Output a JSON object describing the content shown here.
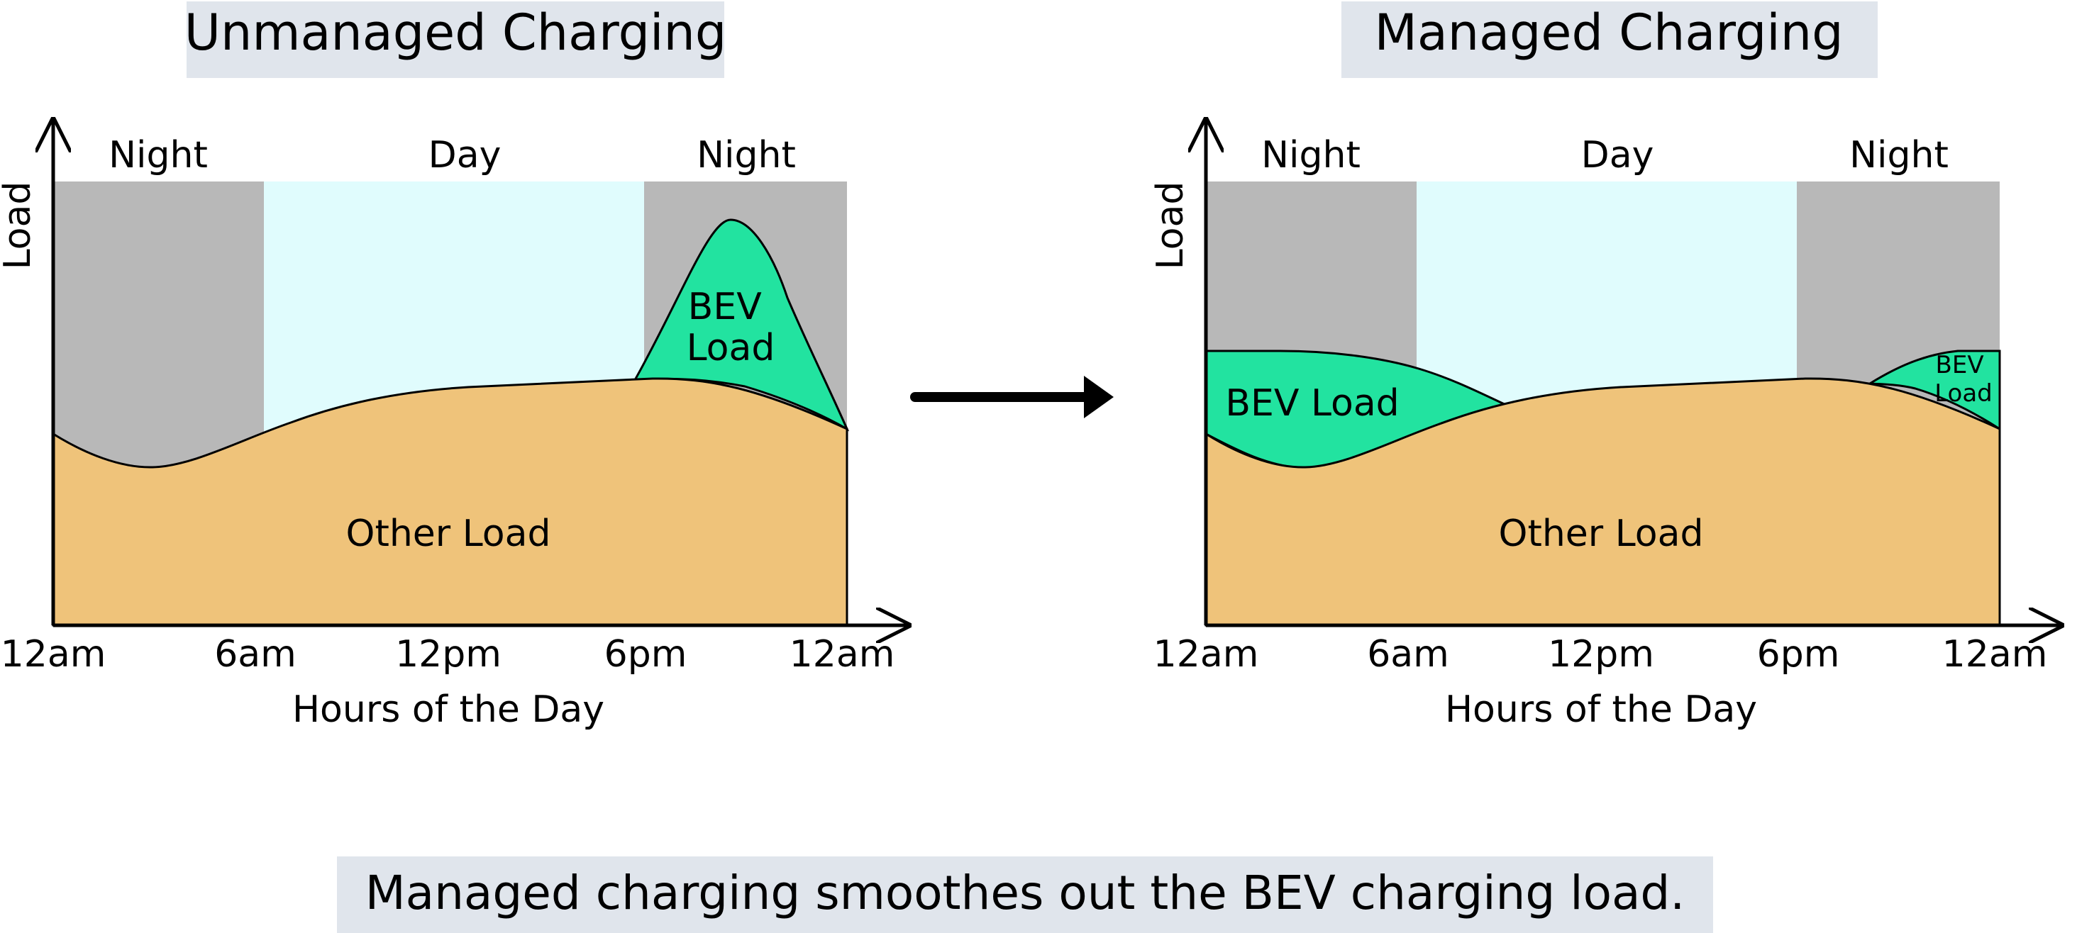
{
  "colors": {
    "night": "#b8b8b8",
    "day": "#e0fcfd",
    "other_load": "#efc37a",
    "bev_load": "#22e3a0",
    "title_box": "#e0e5ec",
    "ink": "#000000"
  },
  "panels": [
    {
      "title": "Unmanaged Charging",
      "ylabel": "Load",
      "xlabel": "Hours of the Day",
      "x_ticks": [
        "12am",
        "6am",
        "12pm",
        "6pm",
        "12am"
      ],
      "periods": [
        "Night",
        "Day",
        "Night"
      ],
      "areas": [
        "Other Load",
        "BEV\nLoad"
      ]
    },
    {
      "title": "Managed Charging",
      "ylabel": "Load",
      "xlabel": "Hours of the Day",
      "x_ticks": [
        "12am",
        "6am",
        "12pm",
        "6pm",
        "12am"
      ],
      "periods": [
        "Night",
        "Day",
        "Night"
      ],
      "areas": [
        "Other Load",
        "BEV Load",
        "BEV\nLoad"
      ]
    }
  ],
  "caption": "Managed charging smoothes out the BEV charging load."
}
